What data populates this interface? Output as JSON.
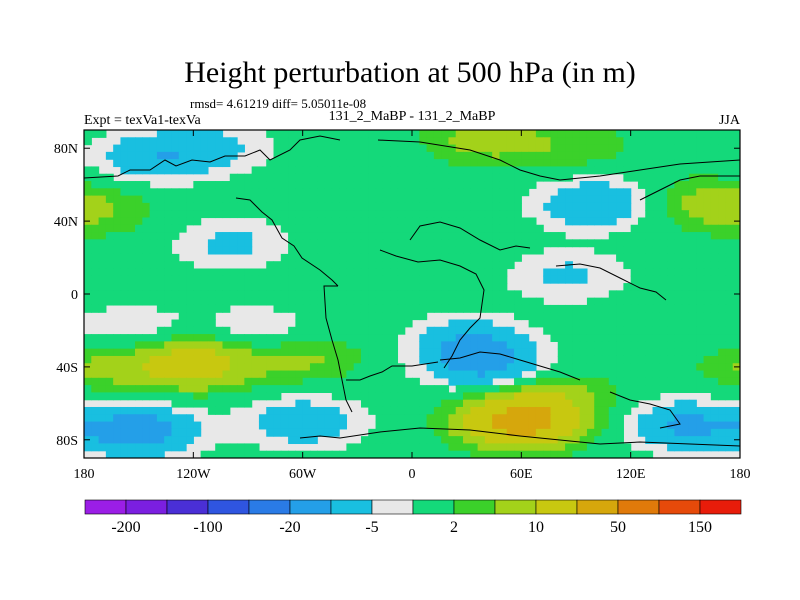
{
  "chart_data": {
    "type": "heatmap",
    "title": "Height perturbation at 500 hPa (in m)",
    "stats_text": "rmsd= 4.61219 diff= 5.05011e-08",
    "left_label": "Expt = texVa1-texVa",
    "center_label": "131_2_MaBP - 131_2_MaBP",
    "right_label": "JJA",
    "x_range": [
      -180,
      180
    ],
    "y_range": [
      -90,
      90
    ],
    "x_ticks": [
      {
        "value": -180,
        "label": "180"
      },
      {
        "value": -120,
        "label": "120W"
      },
      {
        "value": -60,
        "label": "60W"
      },
      {
        "value": 0,
        "label": "0"
      },
      {
        "value": 60,
        "label": "60E"
      },
      {
        "value": 120,
        "label": "120E"
      },
      {
        "value": 180,
        "label": "180"
      }
    ],
    "y_ticks": [
      {
        "value": 80,
        "label": "80N"
      },
      {
        "value": 40,
        "label": "40N"
      },
      {
        "value": 0,
        "label": "0"
      },
      {
        "value": -40,
        "label": "40S"
      },
      {
        "value": -80,
        "label": "80S"
      }
    ],
    "colorbar": {
      "colors": [
        "#9b1ee6",
        "#7b1fe0",
        "#4a2fd6",
        "#2f55e0",
        "#2a7be6",
        "#249fe8",
        "#19bfe0",
        "#e8e8e8",
        "#14d97a",
        "#3bd12a",
        "#a3d21a",
        "#c8c810",
        "#d6a70c",
        "#e07a0a",
        "#e64a0a",
        "#e81c0a"
      ],
      "levels": [
        -200,
        -150,
        -100,
        -50,
        -20,
        -10,
        -5,
        -2,
        2,
        5,
        10,
        20,
        50,
        100,
        150
      ],
      "shown_labels": [
        {
          "value": -200,
          "label": "-200"
        },
        {
          "value": -100,
          "label": "-100"
        },
        {
          "value": -20,
          "label": "-20"
        },
        {
          "value": -5,
          "label": "-5"
        },
        {
          "value": 2,
          "label": "2"
        },
        {
          "value": 10,
          "label": "10"
        },
        {
          "value": 50,
          "label": "50"
        },
        {
          "value": 150,
          "label": "150"
        }
      ]
    },
    "anomalies": [
      {
        "lon": -110,
        "lat": 80,
        "value": -6
      },
      {
        "lon": -145,
        "lat": 75,
        "value": -8
      },
      {
        "lon": -100,
        "lat": 28,
        "value": -6
      },
      {
        "lon": -170,
        "lat": 45,
        "value": 4
      },
      {
        "lon": 40,
        "lat": 85,
        "value": 7
      },
      {
        "lon": 90,
        "lat": 80,
        "value": 4
      },
      {
        "lon": 100,
        "lat": 50,
        "value": -10
      },
      {
        "lon": 160,
        "lat": 50,
        "value": 6
      },
      {
        "lon": 85,
        "lat": 10,
        "value": -6
      },
      {
        "lon": -155,
        "lat": -20,
        "value": -5
      },
      {
        "lon": -85,
        "lat": -20,
        "value": -5
      },
      {
        "lon": 30,
        "lat": -25,
        "value": -7
      },
      {
        "lon": 40,
        "lat": -38,
        "value": -12
      },
      {
        "lon": -120,
        "lat": -38,
        "value": 15
      },
      {
        "lon": -170,
        "lat": -40,
        "value": 6
      },
      {
        "lon": -60,
        "lat": -35,
        "value": 6
      },
      {
        "lon": -150,
        "lat": -75,
        "value": -14
      },
      {
        "lon": -60,
        "lat": -70,
        "value": -9
      },
      {
        "lon": 60,
        "lat": -70,
        "value": 25
      },
      {
        "lon": 150,
        "lat": -72,
        "value": -11
      },
      {
        "lon": 80,
        "lat": -55,
        "value": 5
      }
    ]
  }
}
